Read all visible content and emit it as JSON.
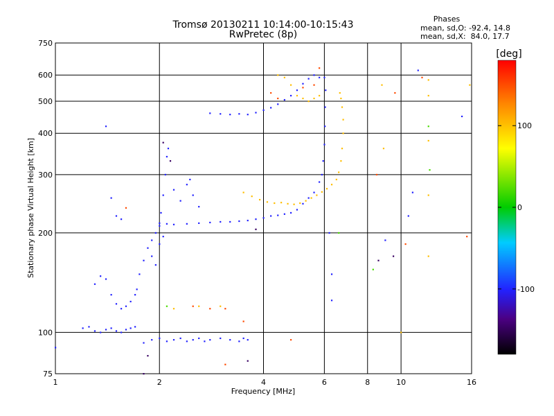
{
  "chart_data": {
    "type": "scatter",
    "title": "Tromsø 20130211 10:14:00-10:15:43",
    "subtitle": "RwPretec (8p)",
    "xlabel": "Frequency [MHz]",
    "ylabel": "Stationary phase Virtual Height [km]",
    "x_scale": "log",
    "y_scale": "log",
    "xlim": [
      1,
      16
    ],
    "ylim": [
      75,
      750
    ],
    "x_ticks": [
      1,
      2,
      4,
      6,
      8,
      10,
      16
    ],
    "x_tick_labels": [
      "1",
      "2",
      "4",
      "6",
      "8",
      "10",
      "16"
    ],
    "y_ticks": [
      75,
      100,
      200,
      300,
      400,
      500,
      600,
      750
    ],
    "y_tick_labels": [
      "75",
      "100",
      "200",
      "300",
      "400",
      "500",
      "600",
      "750"
    ],
    "grid": true,
    "stats": {
      "heading": "Phases",
      "line_o": "mean, sd,O: -92.4, 14.8",
      "line_x": "mean, sd,X:  84.0, 17.7"
    },
    "colorbar": {
      "label": "[deg]",
      "range": [
        -180,
        180
      ],
      "ticks": [
        100,
        0,
        -100
      ],
      "tick_labels": [
        "100",
        "0",
        "-100"
      ]
    },
    "series": [
      {
        "phase": -100,
        "points": [
          [
            1.2,
            103
          ],
          [
            1.25,
            104
          ],
          [
            1.3,
            101
          ],
          [
            1.35,
            100
          ],
          [
            1.4,
            102
          ],
          [
            1.45,
            103
          ],
          [
            1.5,
            101
          ],
          [
            1.55,
            100
          ],
          [
            1.6,
            102
          ],
          [
            1.65,
            103
          ],
          [
            1.7,
            104
          ],
          [
            1.3,
            140
          ],
          [
            1.35,
            148
          ],
          [
            1.4,
            145
          ],
          [
            1.45,
            130
          ],
          [
            1.5,
            122
          ],
          [
            1.55,
            118
          ],
          [
            1.6,
            120
          ],
          [
            1.65,
            124
          ],
          [
            1.7,
            130
          ],
          [
            1.72,
            135
          ],
          [
            1.4,
            420
          ],
          [
            1.45,
            255
          ],
          [
            1.5,
            225
          ],
          [
            1.55,
            220
          ],
          [
            1.75,
            150
          ],
          [
            1.8,
            165
          ],
          [
            1.85,
            180
          ],
          [
            1.9,
            190
          ],
          [
            1.95,
            200
          ],
          [
            2.0,
            210
          ],
          [
            2.02,
            230
          ],
          [
            2.05,
            260
          ],
          [
            2.08,
            300
          ],
          [
            2.1,
            340
          ],
          [
            2.12,
            360
          ],
          [
            1.9,
            170
          ],
          [
            1.95,
            160
          ],
          [
            2.0,
            185
          ],
          [
            2.05,
            195
          ],
          [
            2.2,
            270
          ],
          [
            2.3,
            250
          ],
          [
            2.4,
            280
          ],
          [
            2.5,
            260
          ],
          [
            2.6,
            240
          ],
          [
            2.45,
            290
          ],
          [
            1.9,
            95
          ],
          [
            2.0,
            96
          ],
          [
            2.1,
            94
          ],
          [
            2.2,
            95
          ],
          [
            2.3,
            96
          ],
          [
            2.4,
            94
          ],
          [
            2.5,
            95
          ],
          [
            2.6,
            96
          ],
          [
            2.7,
            94
          ],
          [
            2.8,
            95
          ],
          [
            3.0,
            96
          ],
          [
            3.2,
            95
          ],
          [
            3.4,
            94
          ],
          [
            3.5,
            96
          ],
          [
            3.6,
            95
          ],
          [
            2.0,
            214
          ],
          [
            2.1,
            213
          ],
          [
            2.2,
            212
          ],
          [
            2.4,
            213
          ],
          [
            2.6,
            214
          ],
          [
            2.8,
            215
          ],
          [
            3.0,
            216
          ],
          [
            3.2,
            216
          ],
          [
            3.4,
            217
          ],
          [
            3.6,
            218
          ],
          [
            3.8,
            220
          ],
          [
            4.0,
            222
          ],
          [
            4.2,
            225
          ],
          [
            4.4,
            226
          ],
          [
            4.6,
            228
          ],
          [
            4.8,
            230
          ],
          [
            5.0,
            235
          ],
          [
            5.2,
            245
          ],
          [
            5.4,
            255
          ],
          [
            5.6,
            265
          ],
          [
            5.8,
            285
          ],
          [
            5.9,
            300
          ],
          [
            5.95,
            330
          ],
          [
            6.0,
            370
          ],
          [
            6.02,
            420
          ],
          [
            6.03,
            480
          ],
          [
            6.05,
            540
          ],
          [
            6.0,
            590
          ],
          [
            2.8,
            460
          ],
          [
            3.0,
            458
          ],
          [
            3.2,
            456
          ],
          [
            3.4,
            458
          ],
          [
            3.6,
            456
          ],
          [
            3.8,
            462
          ],
          [
            4.0,
            470
          ],
          [
            4.2,
            478
          ],
          [
            4.4,
            490
          ],
          [
            4.6,
            505
          ],
          [
            4.8,
            520
          ],
          [
            5.0,
            540
          ],
          [
            5.2,
            565
          ],
          [
            5.4,
            585
          ],
          [
            5.6,
            600
          ],
          [
            5.8,
            590
          ],
          [
            6.2,
            200
          ],
          [
            6.3,
            150
          ],
          [
            6.3,
            125
          ],
          [
            9.0,
            190
          ],
          [
            10.5,
            225
          ],
          [
            10.8,
            265
          ],
          [
            11.2,
            620
          ],
          [
            15.0,
            450
          ],
          [
            1.0,
            90
          ],
          [
            1.8,
            93
          ]
        ]
      },
      {
        "phase": 100,
        "points": [
          [
            3.5,
            265
          ],
          [
            3.7,
            258
          ],
          [
            3.9,
            252
          ],
          [
            4.1,
            248
          ],
          [
            4.3,
            246
          ],
          [
            4.5,
            247
          ],
          [
            4.7,
            245
          ],
          [
            4.9,
            244
          ],
          [
            5.1,
            246
          ],
          [
            5.3,
            250
          ],
          [
            5.5,
            255
          ],
          [
            5.7,
            260
          ],
          [
            5.9,
            266
          ],
          [
            6.1,
            272
          ],
          [
            6.3,
            280
          ],
          [
            6.5,
            290
          ],
          [
            6.6,
            305
          ],
          [
            6.7,
            330
          ],
          [
            6.75,
            360
          ],
          [
            6.8,
            400
          ],
          [
            6.8,
            440
          ],
          [
            6.75,
            480
          ],
          [
            6.7,
            510
          ],
          [
            6.65,
            530
          ],
          [
            4.4,
            600
          ],
          [
            4.6,
            590
          ],
          [
            4.8,
            560
          ],
          [
            5.0,
            520
          ],
          [
            5.2,
            510
          ],
          [
            5.4,
            500
          ],
          [
            5.6,
            510
          ],
          [
            5.8,
            520
          ],
          [
            8.8,
            560
          ],
          [
            8.9,
            360
          ],
          [
            10.0,
            100
          ],
          [
            12.0,
            580
          ],
          [
            12.0,
            520
          ],
          [
            12.0,
            380
          ],
          [
            12.0,
            260
          ],
          [
            12.0,
            170
          ],
          [
            15.8,
            560
          ],
          [
            2.2,
            118
          ],
          [
            2.6,
            120
          ],
          [
            3.0,
            120
          ]
        ]
      },
      {
        "phase": 150,
        "points": [
          [
            4.2,
            530
          ],
          [
            4.4,
            510
          ],
          [
            5.2,
            550
          ],
          [
            5.6,
            560
          ],
          [
            2.5,
            120
          ],
          [
            2.8,
            118
          ],
          [
            3.1,
            118
          ],
          [
            3.5,
            108
          ],
          [
            3.1,
            80
          ],
          [
            4.8,
            95
          ],
          [
            8.5,
            300
          ],
          [
            9.6,
            530
          ],
          [
            10.3,
            185
          ],
          [
            11.5,
            590
          ],
          [
            15.5,
            195
          ],
          [
            1.6,
            238
          ],
          [
            5.8,
            630
          ]
        ]
      },
      {
        "phase": 20,
        "points": [
          [
            2.1,
            120
          ],
          [
            8.3,
            155
          ],
          [
            12.0,
            420
          ],
          [
            12.1,
            310
          ],
          [
            6.6,
            200
          ]
        ]
      },
      {
        "phase": -150,
        "points": [
          [
            2.05,
            375
          ],
          [
            2.15,
            330
          ],
          [
            1.85,
            85
          ],
          [
            3.6,
            82
          ],
          [
            3.8,
            205
          ],
          [
            8.6,
            165
          ],
          [
            9.5,
            170
          ],
          [
            1.8,
            75
          ]
        ]
      }
    ]
  }
}
